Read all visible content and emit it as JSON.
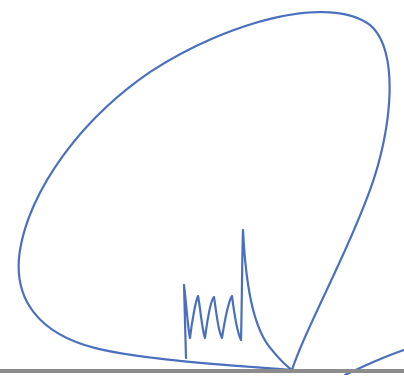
{
  "signature": {
    "ink_color": "#4a6fbf",
    "baseline_color": "#8c8c8c",
    "background_color": "#ffffff"
  }
}
